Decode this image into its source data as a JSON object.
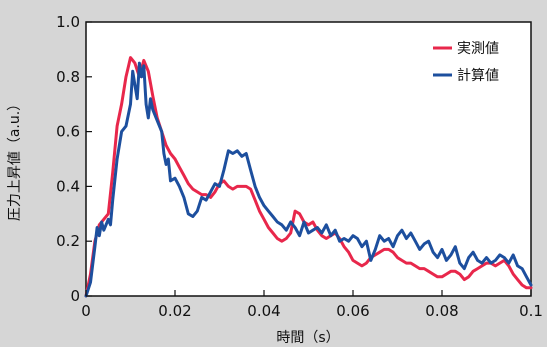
{
  "chart_data": {
    "type": "line",
    "title": "",
    "xlabel": "時間（s）",
    "ylabel": "圧力上昇値（a.u.）",
    "xlim": [
      0,
      0.1
    ],
    "ylim": [
      0,
      1.0
    ],
    "x_ticks": [
      0,
      0.02,
      0.04,
      0.06,
      0.08,
      0.1
    ],
    "x_tick_labels": [
      "0",
      "0.02",
      "0.04",
      "0.06",
      "0.08",
      "0.1"
    ],
    "y_ticks": [
      0,
      0.2,
      0.4,
      0.6,
      0.8,
      1.0
    ],
    "y_tick_labels": [
      "0",
      "0.2",
      "0.4",
      "0.6",
      "0.8",
      "1.0"
    ],
    "grid": false,
    "legend_position": "top-right",
    "series": [
      {
        "name": "実測値",
        "color": "#e8274b",
        "points": [
          [
            0,
            0
          ],
          [
            0.001,
            0.08
          ],
          [
            0.002,
            0.2
          ],
          [
            0.003,
            0.26
          ],
          [
            0.004,
            0.28
          ],
          [
            0.005,
            0.3
          ],
          [
            0.006,
            0.45
          ],
          [
            0.007,
            0.62
          ],
          [
            0.008,
            0.7
          ],
          [
            0.009,
            0.8
          ],
          [
            0.01,
            0.87
          ],
          [
            0.011,
            0.85
          ],
          [
            0.012,
            0.8
          ],
          [
            0.013,
            0.86
          ],
          [
            0.014,
            0.82
          ],
          [
            0.015,
            0.73
          ],
          [
            0.016,
            0.65
          ],
          [
            0.017,
            0.6
          ],
          [
            0.018,
            0.55
          ],
          [
            0.019,
            0.52
          ],
          [
            0.02,
            0.5
          ],
          [
            0.021,
            0.47
          ],
          [
            0.022,
            0.44
          ],
          [
            0.023,
            0.41
          ],
          [
            0.024,
            0.39
          ],
          [
            0.025,
            0.38
          ],
          [
            0.026,
            0.37
          ],
          [
            0.027,
            0.37
          ],
          [
            0.028,
            0.36
          ],
          [
            0.029,
            0.38
          ],
          [
            0.03,
            0.41
          ],
          [
            0.031,
            0.42
          ],
          [
            0.032,
            0.4
          ],
          [
            0.033,
            0.39
          ],
          [
            0.034,
            0.4
          ],
          [
            0.035,
            0.4
          ],
          [
            0.036,
            0.4
          ],
          [
            0.037,
            0.39
          ],
          [
            0.038,
            0.35
          ],
          [
            0.039,
            0.31
          ],
          [
            0.04,
            0.28
          ],
          [
            0.041,
            0.25
          ],
          [
            0.042,
            0.23
          ],
          [
            0.043,
            0.21
          ],
          [
            0.044,
            0.2
          ],
          [
            0.045,
            0.21
          ],
          [
            0.046,
            0.23
          ],
          [
            0.047,
            0.31
          ],
          [
            0.048,
            0.3
          ],
          [
            0.049,
            0.27
          ],
          [
            0.05,
            0.26
          ],
          [
            0.051,
            0.27
          ],
          [
            0.052,
            0.24
          ],
          [
            0.053,
            0.22
          ],
          [
            0.054,
            0.21
          ],
          [
            0.055,
            0.22
          ],
          [
            0.056,
            0.23
          ],
          [
            0.057,
            0.21
          ],
          [
            0.058,
            0.18
          ],
          [
            0.059,
            0.16
          ],
          [
            0.06,
            0.13
          ],
          [
            0.061,
            0.12
          ],
          [
            0.062,
            0.11
          ],
          [
            0.063,
            0.12
          ],
          [
            0.064,
            0.14
          ],
          [
            0.065,
            0.15
          ],
          [
            0.066,
            0.16
          ],
          [
            0.067,
            0.17
          ],
          [
            0.068,
            0.17
          ],
          [
            0.069,
            0.16
          ],
          [
            0.07,
            0.14
          ],
          [
            0.071,
            0.13
          ],
          [
            0.072,
            0.12
          ],
          [
            0.073,
            0.12
          ],
          [
            0.074,
            0.11
          ],
          [
            0.075,
            0.1
          ],
          [
            0.076,
            0.1
          ],
          [
            0.077,
            0.09
          ],
          [
            0.078,
            0.08
          ],
          [
            0.079,
            0.07
          ],
          [
            0.08,
            0.07
          ],
          [
            0.081,
            0.08
          ],
          [
            0.082,
            0.09
          ],
          [
            0.083,
            0.09
          ],
          [
            0.084,
            0.08
          ],
          [
            0.085,
            0.06
          ],
          [
            0.086,
            0.07
          ],
          [
            0.087,
            0.09
          ],
          [
            0.088,
            0.1
          ],
          [
            0.089,
            0.11
          ],
          [
            0.09,
            0.12
          ],
          [
            0.091,
            0.12
          ],
          [
            0.092,
            0.11
          ],
          [
            0.093,
            0.12
          ],
          [
            0.094,
            0.13
          ],
          [
            0.095,
            0.11
          ],
          [
            0.096,
            0.08
          ],
          [
            0.097,
            0.06
          ],
          [
            0.098,
            0.04
          ],
          [
            0.099,
            0.03
          ],
          [
            0.1,
            0.03
          ]
        ]
      },
      {
        "name": "計算値",
        "color": "#1d4f9e",
        "points": [
          [
            0,
            0
          ],
          [
            0.001,
            0.05
          ],
          [
            0.002,
            0.18
          ],
          [
            0.0025,
            0.25
          ],
          [
            0.003,
            0.22
          ],
          [
            0.0035,
            0.27
          ],
          [
            0.004,
            0.24
          ],
          [
            0.005,
            0.28
          ],
          [
            0.0055,
            0.26
          ],
          [
            0.006,
            0.35
          ],
          [
            0.007,
            0.5
          ],
          [
            0.008,
            0.6
          ],
          [
            0.009,
            0.62
          ],
          [
            0.01,
            0.7
          ],
          [
            0.0105,
            0.82
          ],
          [
            0.011,
            0.77
          ],
          [
            0.0115,
            0.72
          ],
          [
            0.012,
            0.85
          ],
          [
            0.0125,
            0.8
          ],
          [
            0.013,
            0.84
          ],
          [
            0.0135,
            0.7
          ],
          [
            0.014,
            0.65
          ],
          [
            0.0145,
            0.72
          ],
          [
            0.015,
            0.68
          ],
          [
            0.016,
            0.64
          ],
          [
            0.017,
            0.6
          ],
          [
            0.0175,
            0.52
          ],
          [
            0.018,
            0.48
          ],
          [
            0.0185,
            0.5
          ],
          [
            0.019,
            0.42
          ],
          [
            0.02,
            0.43
          ],
          [
            0.021,
            0.4
          ],
          [
            0.022,
            0.36
          ],
          [
            0.023,
            0.3
          ],
          [
            0.024,
            0.29
          ],
          [
            0.025,
            0.31
          ],
          [
            0.026,
            0.36
          ],
          [
            0.027,
            0.35
          ],
          [
            0.028,
            0.38
          ],
          [
            0.029,
            0.41
          ],
          [
            0.03,
            0.4
          ],
          [
            0.031,
            0.46
          ],
          [
            0.032,
            0.53
          ],
          [
            0.033,
            0.52
          ],
          [
            0.034,
            0.53
          ],
          [
            0.035,
            0.51
          ],
          [
            0.036,
            0.52
          ],
          [
            0.037,
            0.46
          ],
          [
            0.038,
            0.4
          ],
          [
            0.039,
            0.36
          ],
          [
            0.04,
            0.33
          ],
          [
            0.041,
            0.31
          ],
          [
            0.042,
            0.29
          ],
          [
            0.043,
            0.27
          ],
          [
            0.044,
            0.26
          ],
          [
            0.045,
            0.24
          ],
          [
            0.046,
            0.27
          ],
          [
            0.047,
            0.25
          ],
          [
            0.048,
            0.22
          ],
          [
            0.049,
            0.27
          ],
          [
            0.05,
            0.23
          ],
          [
            0.051,
            0.24
          ],
          [
            0.052,
            0.25
          ],
          [
            0.053,
            0.23
          ],
          [
            0.054,
            0.26
          ],
          [
            0.055,
            0.22
          ],
          [
            0.056,
            0.24
          ],
          [
            0.057,
            0.2
          ],
          [
            0.058,
            0.21
          ],
          [
            0.059,
            0.2
          ],
          [
            0.06,
            0.22
          ],
          [
            0.061,
            0.21
          ],
          [
            0.062,
            0.18
          ],
          [
            0.063,
            0.2
          ],
          [
            0.064,
            0.13
          ],
          [
            0.065,
            0.17
          ],
          [
            0.066,
            0.22
          ],
          [
            0.067,
            0.2
          ],
          [
            0.068,
            0.21
          ],
          [
            0.069,
            0.18
          ],
          [
            0.07,
            0.22
          ],
          [
            0.071,
            0.24
          ],
          [
            0.072,
            0.21
          ],
          [
            0.073,
            0.23
          ],
          [
            0.074,
            0.2
          ],
          [
            0.075,
            0.17
          ],
          [
            0.076,
            0.19
          ],
          [
            0.077,
            0.2
          ],
          [
            0.078,
            0.16
          ],
          [
            0.079,
            0.14
          ],
          [
            0.08,
            0.17
          ],
          [
            0.081,
            0.13
          ],
          [
            0.082,
            0.15
          ],
          [
            0.083,
            0.18
          ],
          [
            0.084,
            0.12
          ],
          [
            0.085,
            0.1
          ],
          [
            0.086,
            0.14
          ],
          [
            0.087,
            0.16
          ],
          [
            0.088,
            0.13
          ],
          [
            0.089,
            0.12
          ],
          [
            0.09,
            0.14
          ],
          [
            0.091,
            0.12
          ],
          [
            0.092,
            0.13
          ],
          [
            0.093,
            0.15
          ],
          [
            0.094,
            0.14
          ],
          [
            0.095,
            0.12
          ],
          [
            0.096,
            0.15
          ],
          [
            0.097,
            0.11
          ],
          [
            0.098,
            0.1
          ],
          [
            0.099,
            0.07
          ],
          [
            0.1,
            0.04
          ]
        ]
      }
    ]
  }
}
